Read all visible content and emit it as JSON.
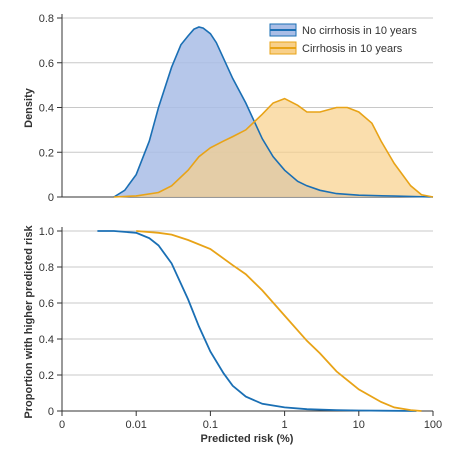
{
  "chart_data": [
    {
      "type": "area",
      "xlabel": "",
      "ylabel": "Density",
      "x_scale": "log",
      "xlim": [
        0.001,
        100
      ],
      "ylim": [
        0,
        0.8
      ],
      "yticks": [
        "0",
        "0.2",
        "0.4",
        "0.6",
        "0.8"
      ],
      "grid": "horizontal",
      "legend": "top-right",
      "series": [
        {
          "name": "No cirrhosis in 10 years",
          "color": "#1a6fb4",
          "fill": "#a9bde6",
          "points": [
            [
              0.005,
              0
            ],
            [
              0.007,
              0.03
            ],
            [
              0.01,
              0.1
            ],
            [
              0.015,
              0.25
            ],
            [
              0.02,
              0.4
            ],
            [
              0.03,
              0.58
            ],
            [
              0.04,
              0.68
            ],
            [
              0.05,
              0.72
            ],
            [
              0.06,
              0.75
            ],
            [
              0.07,
              0.76
            ],
            [
              0.08,
              0.755
            ],
            [
              0.1,
              0.73
            ],
            [
              0.12,
              0.69
            ],
            [
              0.15,
              0.62
            ],
            [
              0.2,
              0.53
            ],
            [
              0.3,
              0.42
            ],
            [
              0.4,
              0.33
            ],
            [
              0.5,
              0.26
            ],
            [
              0.7,
              0.18
            ],
            [
              1,
              0.12
            ],
            [
              1.5,
              0.07
            ],
            [
              2,
              0.05
            ],
            [
              3,
              0.03
            ],
            [
              5,
              0.015
            ],
            [
              10,
              0.008
            ],
            [
              30,
              0.004
            ],
            [
              100,
              0
            ]
          ]
        },
        {
          "name": "Cirrhosis in 10 years",
          "color": "#e8a317",
          "fill": "#f8d08a",
          "points": [
            [
              0.005,
              0
            ],
            [
              0.01,
              0.005
            ],
            [
              0.02,
              0.02
            ],
            [
              0.03,
              0.05
            ],
            [
              0.05,
              0.12
            ],
            [
              0.07,
              0.18
            ],
            [
              0.1,
              0.22
            ],
            [
              0.15,
              0.25
            ],
            [
              0.2,
              0.27
            ],
            [
              0.3,
              0.3
            ],
            [
              0.5,
              0.37
            ],
            [
              0.7,
              0.42
            ],
            [
              1,
              0.44
            ],
            [
              1.5,
              0.41
            ],
            [
              2,
              0.38
            ],
            [
              3,
              0.38
            ],
            [
              5,
              0.4
            ],
            [
              7,
              0.4
            ],
            [
              10,
              0.38
            ],
            [
              15,
              0.33
            ],
            [
              20,
              0.25
            ],
            [
              30,
              0.15
            ],
            [
              50,
              0.05
            ],
            [
              70,
              0.01
            ],
            [
              100,
              0
            ]
          ]
        }
      ]
    },
    {
      "type": "line",
      "xlabel": "Predicted risk (%)",
      "ylabel": "Proportion with higher predicted risk",
      "x_scale": "log",
      "xlim": [
        0.001,
        100
      ],
      "ylim": [
        0,
        1.0
      ],
      "yticks": [
        "0",
        "0.2",
        "0.4",
        "0.6",
        "0.8",
        "1.0"
      ],
      "xticks": [
        {
          "value": 0.001,
          "label": "0"
        },
        {
          "value": 0.01,
          "label": "0.01"
        },
        {
          "value": 0.1,
          "label": "0.1"
        },
        {
          "value": 1,
          "label": "1"
        },
        {
          "value": 10,
          "label": "10"
        },
        {
          "value": 100,
          "label": "100"
        }
      ],
      "grid": "horizontal",
      "series": [
        {
          "color": "#1a6fb4",
          "points": [
            [
              0.003,
              1
            ],
            [
              0.005,
              1
            ],
            [
              0.01,
              0.99
            ],
            [
              0.015,
              0.96
            ],
            [
              0.02,
              0.92
            ],
            [
              0.03,
              0.82
            ],
            [
              0.05,
              0.62
            ],
            [
              0.07,
              0.47
            ],
            [
              0.1,
              0.33
            ],
            [
              0.15,
              0.21
            ],
            [
              0.2,
              0.14
            ],
            [
              0.3,
              0.08
            ],
            [
              0.5,
              0.04
            ],
            [
              1,
              0.02
            ],
            [
              2,
              0.01
            ],
            [
              5,
              0.005
            ],
            [
              10,
              0.003
            ],
            [
              60,
              0
            ]
          ]
        },
        {
          "color": "#e8a317",
          "points": [
            [
              0.01,
              1
            ],
            [
              0.02,
              0.99
            ],
            [
              0.03,
              0.98
            ],
            [
              0.05,
              0.95
            ],
            [
              0.1,
              0.9
            ],
            [
              0.2,
              0.81
            ],
            [
              0.3,
              0.76
            ],
            [
              0.5,
              0.67
            ],
            [
              1,
              0.53
            ],
            [
              2,
              0.39
            ],
            [
              3,
              0.32
            ],
            [
              5,
              0.22
            ],
            [
              10,
              0.12
            ],
            [
              20,
              0.05
            ],
            [
              30,
              0.02
            ],
            [
              50,
              0.005
            ],
            [
              70,
              0
            ]
          ]
        }
      ]
    }
  ]
}
